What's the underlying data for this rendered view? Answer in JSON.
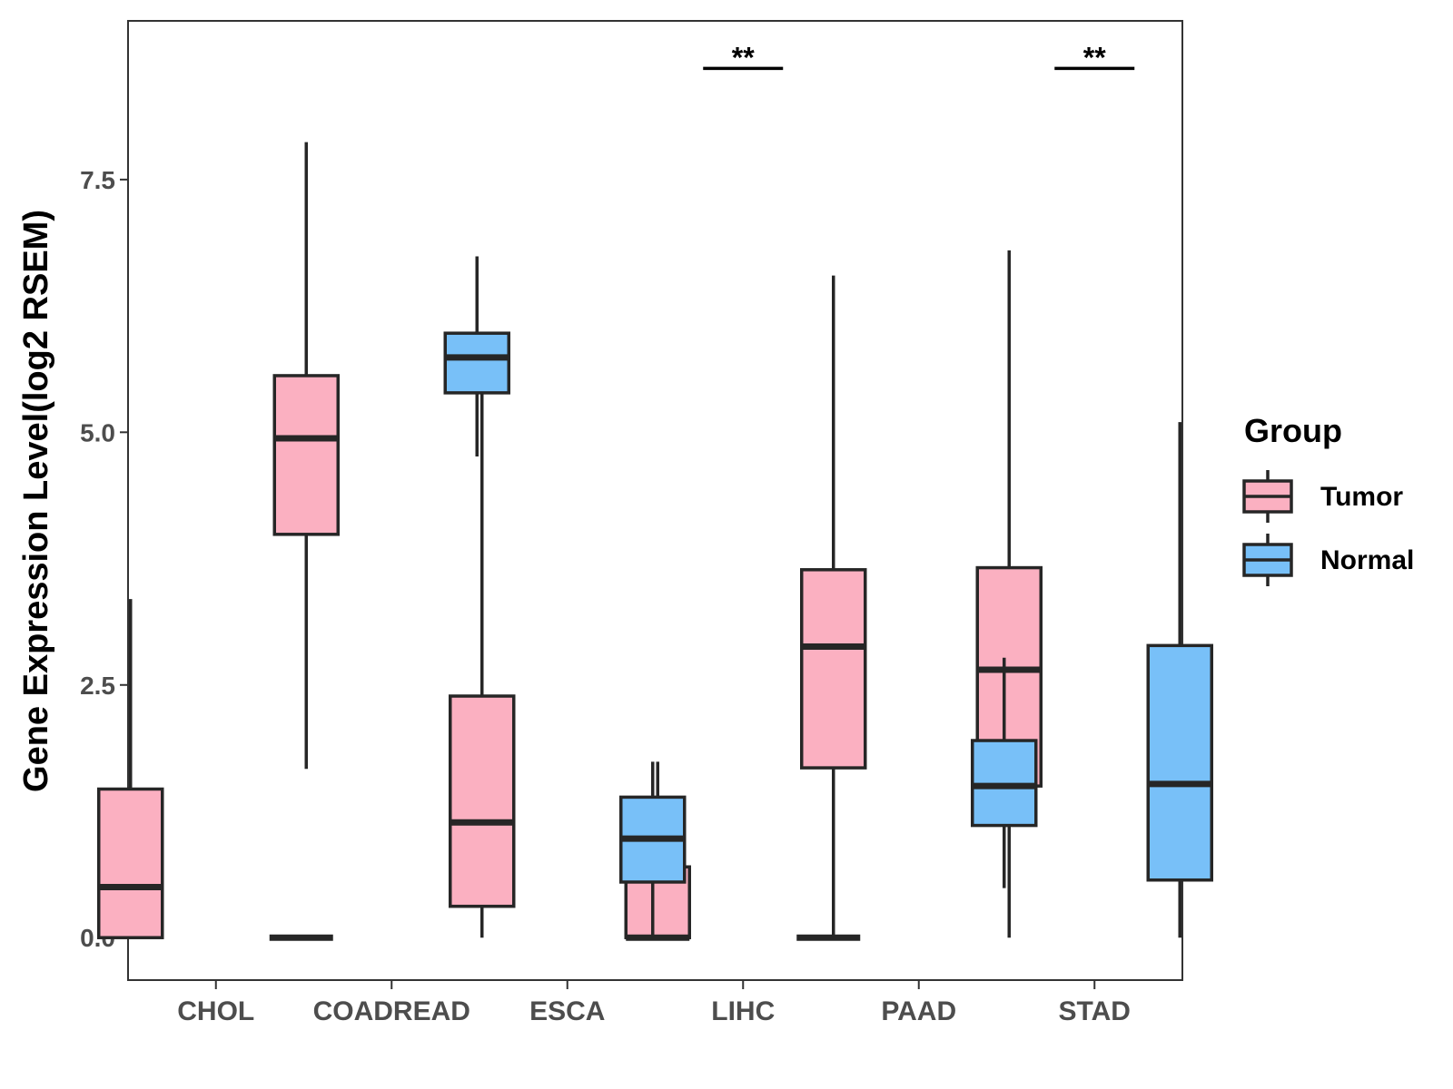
{
  "chart_data": {
    "type": "boxplot",
    "title": "",
    "xlabel": "",
    "ylabel": "Gene Expression Level(log2 RSEM)",
    "ylim": [
      -0.42,
      9.07
    ],
    "yticks": [
      0.0,
      2.5,
      5.0,
      7.5
    ],
    "ytick_labels": [
      "0.0",
      "2.5",
      "5.0",
      "7.5"
    ],
    "categories": [
      "CHOL",
      "COADREAD",
      "ESCA",
      "LIHC",
      "PAAD",
      "STAD"
    ],
    "legend": {
      "title": "Group",
      "position": "right",
      "entries": [
        {
          "name": "Tumor",
          "color": "#FBB0C1"
        },
        {
          "name": "Normal",
          "color": "#78C0F8"
        }
      ]
    },
    "series": [
      {
        "name": "Tumor",
        "color": "#FBB0C1",
        "boxes": [
          {
            "category": "CHOL",
            "min": 0.0,
            "q1": 0.0,
            "median": 0.5,
            "q3": 1.47,
            "max": 3.35
          },
          {
            "category": "COADREAD",
            "min": 1.67,
            "q1": 3.99,
            "median": 4.94,
            "q3": 5.56,
            "max": 7.87
          },
          {
            "category": "ESCA",
            "min": 0.0,
            "q1": 0.31,
            "median": 1.14,
            "q3": 2.39,
            "max": 5.41
          },
          {
            "category": "LIHC",
            "min": 0.0,
            "q1": 0.0,
            "median": 0.0,
            "q3": 0.7,
            "max": 1.74
          },
          {
            "category": "PAAD",
            "min": 0.0,
            "q1": 1.68,
            "median": 2.88,
            "q3": 3.64,
            "max": 6.55
          },
          {
            "category": "STAD",
            "min": 0.0,
            "q1": 1.5,
            "median": 2.65,
            "q3": 3.66,
            "max": 6.8
          }
        ]
      },
      {
        "name": "Normal",
        "color": "#78C0F8",
        "boxes": [
          {
            "category": "CHOL",
            "min": 0.0,
            "q1": 0.0,
            "median": 0.0,
            "q3": 0.0,
            "max": 0.0
          },
          {
            "category": "COADREAD",
            "min": 4.76,
            "q1": 5.39,
            "median": 5.74,
            "q3": 5.98,
            "max": 6.74
          },
          {
            "category": "ESCA",
            "min": 0.0,
            "q1": 0.55,
            "median": 0.98,
            "q3": 1.39,
            "max": 1.74
          },
          {
            "category": "LIHC",
            "min": 0.0,
            "q1": 0.0,
            "median": 0.0,
            "q3": 0.0,
            "max": 0.0
          },
          {
            "category": "PAAD",
            "min": 0.49,
            "q1": 1.11,
            "median": 1.5,
            "q3": 1.95,
            "max": 2.77
          },
          {
            "category": "STAD",
            "min": 0.0,
            "q1": 0.57,
            "median": 1.52,
            "q3": 2.89,
            "max": 5.1
          }
        ]
      }
    ],
    "annotations": [
      {
        "category": "LIHC",
        "label": "**",
        "y": 8.6
      },
      {
        "category": "STAD",
        "label": "**",
        "y": 8.6
      }
    ]
  }
}
